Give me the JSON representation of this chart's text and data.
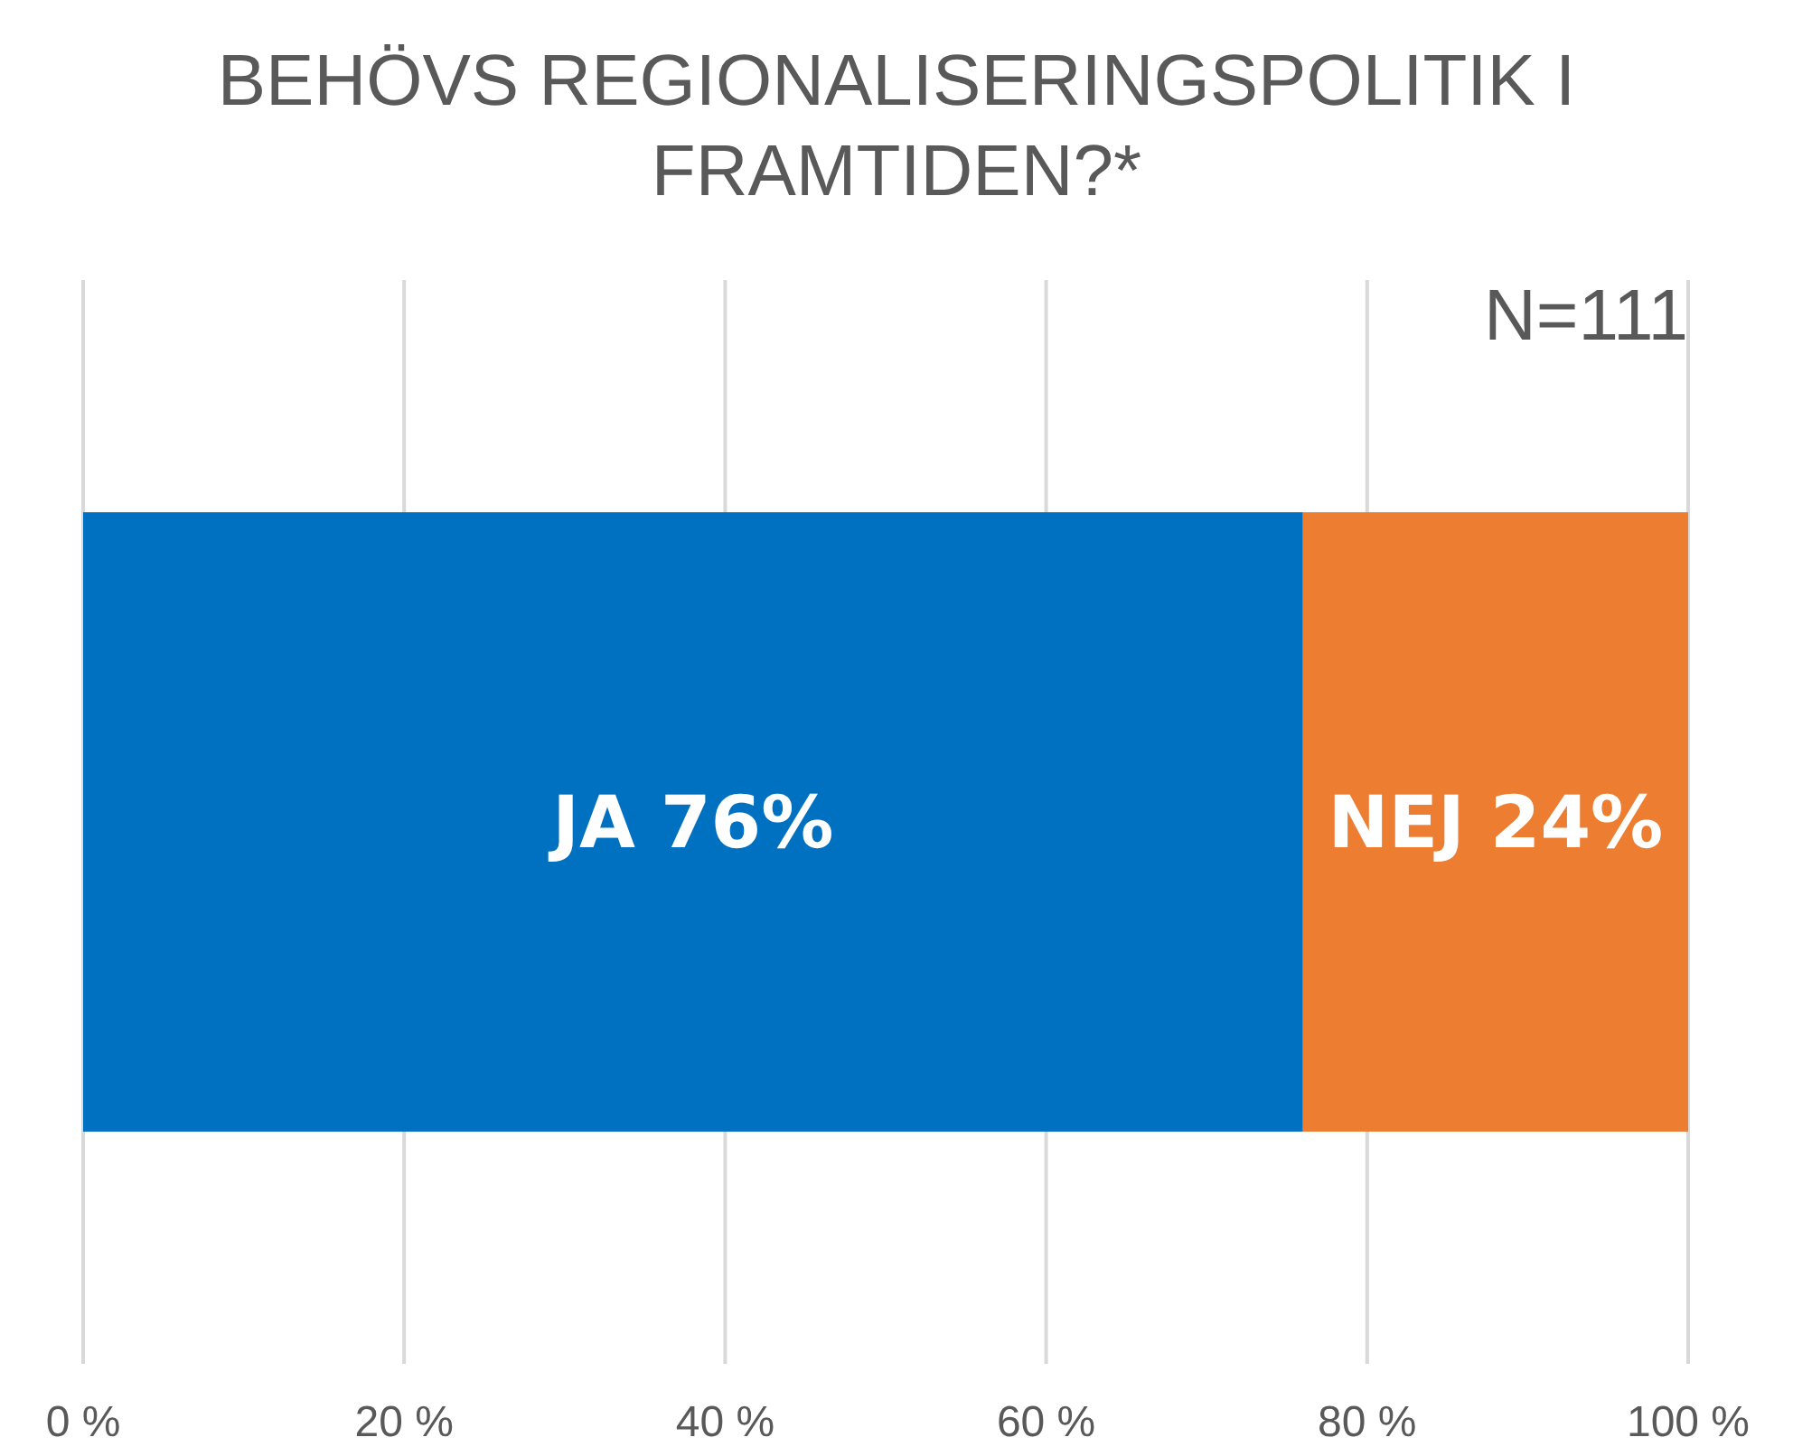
{
  "chart_data": {
    "type": "bar",
    "title": "BEHÖVS REGIONALISERINGSPOLITIK I FRAMTIDEN?*",
    "orientation": "horizontal",
    "stacked": true,
    "categories": [
      null
    ],
    "series": [
      {
        "color": "#0070c0",
        "values": [
          76
        ],
        "value_labels": [
          "JA 76%"
        ]
      },
      {
        "color": "#ed7d31",
        "values": [
          24
        ],
        "value_labels": [
          "NEJ 24%"
        ]
      }
    ],
    "xlim": [
      0,
      100
    ],
    "xticks": [
      {
        "value": 0,
        "label": "0 %"
      },
      {
        "value": 20,
        "label": "20 %"
      },
      {
        "value": 40,
        "label": "40 %"
      },
      {
        "value": 60,
        "label": "60 %"
      },
      {
        "value": 80,
        "label": "80 %"
      },
      {
        "value": 100,
        "label": "100 %"
      }
    ],
    "grid": "x",
    "annotations": [
      "N=111"
    ]
  }
}
